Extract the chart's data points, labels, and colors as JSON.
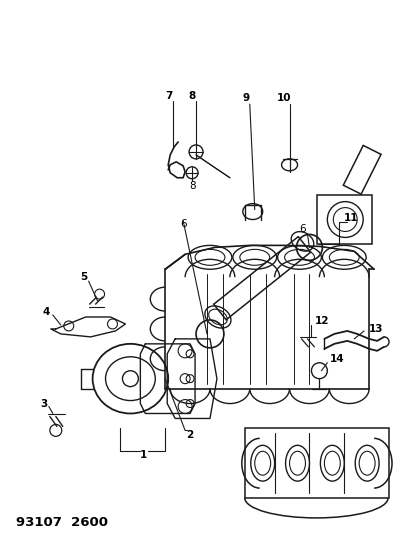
{
  "title": "93107  2600",
  "background_color": "#ffffff",
  "line_color": "#1a1a1a",
  "fig_width": 4.14,
  "fig_height": 5.33,
  "dpi": 100
}
